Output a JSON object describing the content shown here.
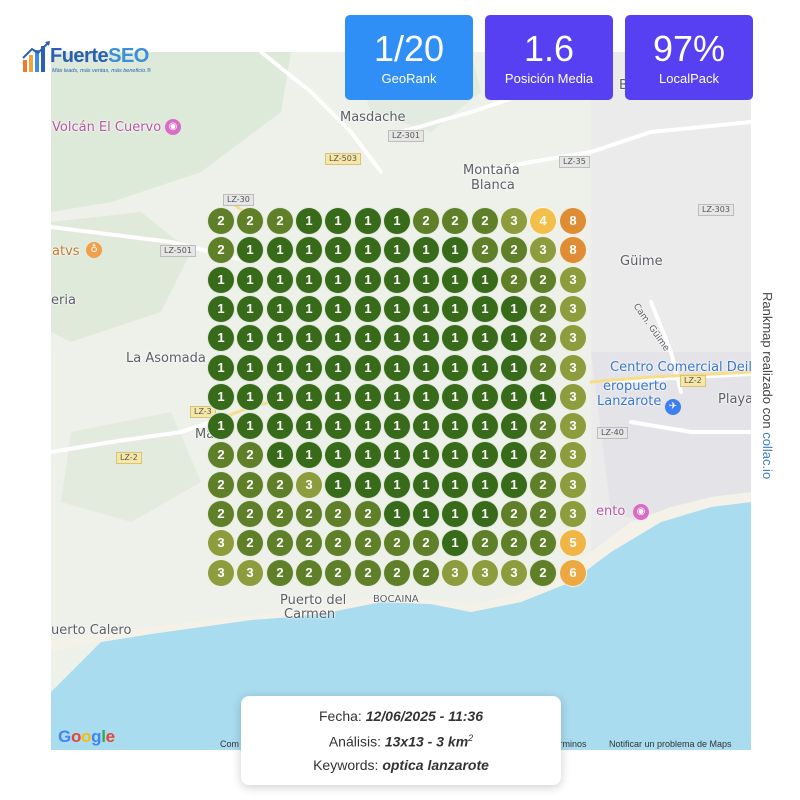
{
  "brand": {
    "name_part1": "Fuerte",
    "name_part2": "SEO",
    "tagline": "Más leads, más ventas, más beneficio.®"
  },
  "stats": [
    {
      "value": "1/20",
      "label": "GeoRank",
      "color": "#2f8ff7"
    },
    {
      "value": "1.6",
      "label": "Posición Media",
      "color": "#5740f2"
    },
    {
      "value": "97%",
      "label": "LocalPack",
      "color": "#5740f2"
    }
  ],
  "credit": {
    "text": "Rankmap realizado con ",
    "link": "collac.io"
  },
  "map": {
    "places": [
      "Masdache",
      "Montaña",
      "Blanca",
      "Güime",
      "La Asomada",
      "Playa",
      "Puerto del",
      "Carmen",
      "BOCAINA",
      "uerto Calero",
      "eria",
      "Ma",
      "B"
    ],
    "pois": [
      {
        "label": "Volcán El Cuervo",
        "icon": "camera-icon"
      },
      {
        "label": "atvs",
        "icon": "wine-icon"
      },
      {
        "label": "Centro Comercial Deila",
        "icon": "shopping-icon"
      },
      {
        "label": "eropuerto",
        "icon": "airport-icon"
      },
      {
        "label": "Lanzarote",
        "icon": "airport-icon"
      },
      {
        "label": "ento",
        "icon": "camera-icon"
      }
    ],
    "roads": [
      "LZ-301",
      "LZ-503",
      "LZ-35",
      "LZ-30",
      "LZ-501",
      "LZ-303",
      "LZ-2",
      "LZ-40",
      "LZ-2",
      "LZ-3"
    ],
    "street": "Cam. Güime",
    "footer": {
      "google": "Google",
      "left": "Com",
      "terms": "Términos",
      "report": "Notificar un problema de Maps"
    }
  },
  "grid": {
    "rows": 13,
    "cols": 13,
    "ranks": [
      [
        2,
        2,
        2,
        1,
        1,
        1,
        1,
        2,
        2,
        2,
        3,
        4,
        8
      ],
      [
        2,
        1,
        1,
        1,
        1,
        1,
        1,
        1,
        1,
        2,
        2,
        3,
        8
      ],
      [
        1,
        1,
        1,
        1,
        1,
        1,
        1,
        1,
        1,
        1,
        2,
        2,
        3
      ],
      [
        1,
        1,
        1,
        1,
        1,
        1,
        1,
        1,
        1,
        1,
        1,
        2,
        3
      ],
      [
        1,
        1,
        1,
        1,
        1,
        1,
        1,
        1,
        1,
        1,
        1,
        2,
        3
      ],
      [
        1,
        1,
        1,
        1,
        1,
        1,
        1,
        1,
        1,
        1,
        1,
        2,
        3
      ],
      [
        1,
        1,
        1,
        1,
        1,
        1,
        1,
        1,
        1,
        1,
        1,
        1,
        3
      ],
      [
        1,
        1,
        1,
        1,
        1,
        1,
        1,
        1,
        1,
        1,
        1,
        2,
        3
      ],
      [
        2,
        2,
        1,
        1,
        1,
        1,
        1,
        1,
        1,
        1,
        1,
        2,
        3
      ],
      [
        2,
        2,
        2,
        3,
        1,
        1,
        1,
        1,
        1,
        1,
        1,
        2,
        3
      ],
      [
        2,
        2,
        2,
        2,
        2,
        2,
        1,
        1,
        1,
        1,
        2,
        2,
        3
      ],
      [
        3,
        2,
        2,
        2,
        2,
        2,
        2,
        2,
        1,
        2,
        2,
        2,
        5
      ],
      [
        3,
        3,
        2,
        2,
        2,
        2,
        2,
        2,
        3,
        3,
        3,
        2,
        6
      ]
    ],
    "colors": {
      "1": "#386b19",
      "2": "#5f8029",
      "3": "#8d9c3c",
      "4": "#f2c04a",
      "5": "#f0b547",
      "6": "#eda841",
      "8": "#df8d35"
    }
  },
  "info": {
    "fecha_label": "Fecha: ",
    "fecha_value": "12/06/2025 - 11:36",
    "analisis_label": "Análisis: ",
    "analisis_value": "13x13 - 3 km",
    "analisis_sup": "2",
    "keywords_label": "Keywords: ",
    "keywords_value": "optica lanzarote"
  }
}
